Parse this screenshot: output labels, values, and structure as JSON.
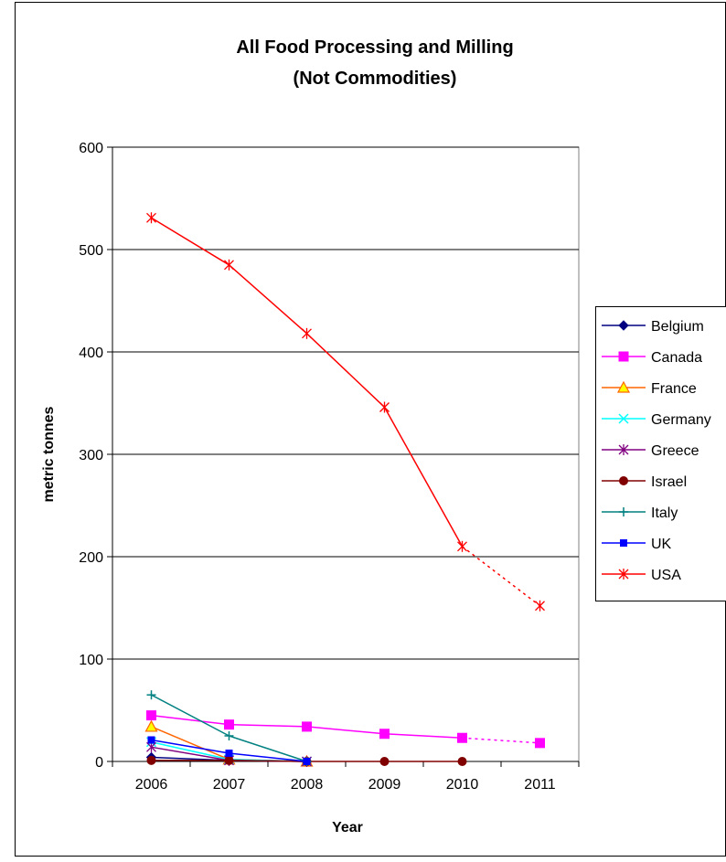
{
  "chart_data": {
    "type": "line",
    "title_line1": "All Food Processing and Milling",
    "title_line2": "(Not Commodities)",
    "xlabel": "Year",
    "ylabel": "metric tonnes",
    "categories": [
      "2006",
      "2007",
      "2008",
      "2009",
      "2010",
      "2011"
    ],
    "y_ticks": [
      "0",
      "100",
      "200",
      "300",
      "400",
      "500",
      "600"
    ],
    "ylim": [
      0,
      600
    ],
    "grid": "horizontal",
    "legend_position": "right",
    "dashed_segment_note": "segment 2010 to 2011 is dotted",
    "series": [
      {
        "name": "Belgium",
        "color": "#000080",
        "marker": "diamond",
        "values": [
          4,
          1,
          0,
          null,
          null,
          null
        ]
      },
      {
        "name": "Canada",
        "color": "#ff00ff",
        "marker": "square",
        "values": [
          45,
          36,
          34,
          27,
          23,
          18
        ]
      },
      {
        "name": "France",
        "color": "#ff6600",
        "marker": "triangle",
        "values": [
          34,
          2,
          0,
          null,
          null,
          null
        ]
      },
      {
        "name": "Germany",
        "color": "#00ffff",
        "marker": "x",
        "values": [
          19,
          2,
          0,
          null,
          null,
          null
        ]
      },
      {
        "name": "Greece",
        "color": "#800080",
        "marker": "star",
        "values": [
          14,
          1,
          0,
          null,
          null,
          null
        ]
      },
      {
        "name": "Israel",
        "color": "#800000",
        "marker": "circle",
        "values": [
          1,
          1,
          0,
          0,
          0,
          null
        ]
      },
      {
        "name": "Italy",
        "color": "#008080",
        "marker": "plus",
        "values": [
          65,
          25,
          0,
          null,
          null,
          null
        ]
      },
      {
        "name": "UK",
        "color": "#0000ff",
        "marker": "smallsquare",
        "values": [
          21,
          8,
          0,
          null,
          null,
          null
        ]
      },
      {
        "name": "USA",
        "color": "#ff0000",
        "marker": "star",
        "values": [
          531,
          485,
          418,
          346,
          210,
          152
        ]
      }
    ]
  }
}
